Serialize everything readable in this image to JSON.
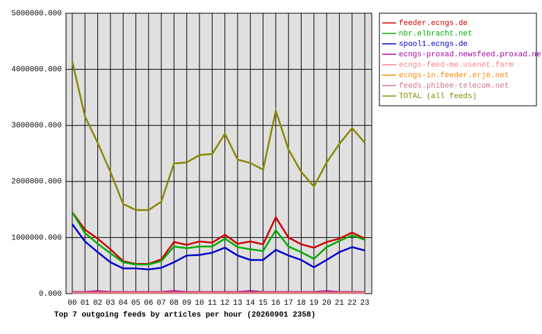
{
  "chart_data": {
    "type": "line",
    "title": "Top 7 outgoing feeds by articles per hour (20260901 2358)",
    "categories": [
      "00",
      "01",
      "02",
      "03",
      "04",
      "05",
      "06",
      "07",
      "08",
      "09",
      "10",
      "11",
      "12",
      "13",
      "14",
      "15",
      "16",
      "17",
      "18",
      "19",
      "20",
      "21",
      "22",
      "23"
    ],
    "ylim": [
      0,
      5000000
    ],
    "yticks": [
      {
        "value": 0,
        "label": "0.000"
      },
      {
        "value": 1000000,
        "label": "1000000.000"
      },
      {
        "value": 2000000,
        "label": "2000000.000"
      },
      {
        "value": 3000000,
        "label": "3000000.000"
      },
      {
        "value": 4000000,
        "label": "4000000.000"
      },
      {
        "value": 5000000,
        "label": "5000000.000"
      }
    ],
    "grid": true,
    "legend": "right",
    "series": [
      {
        "name": "feeder.ecngs.de",
        "color": "#cc0000",
        "values": [
          1450000,
          1140000,
          980000,
          790000,
          580000,
          530000,
          530000,
          610000,
          920000,
          870000,
          930000,
          910000,
          1050000,
          890000,
          930000,
          880000,
          1360000,
          1000000,
          880000,
          820000,
          920000,
          980000,
          1090000,
          980000
        ]
      },
      {
        "name": "nbr.elbracht.net",
        "color": "#00aa00",
        "values": [
          1450000,
          1080000,
          890000,
          720000,
          560000,
          520000,
          520000,
          580000,
          840000,
          810000,
          840000,
          840000,
          980000,
          830000,
          790000,
          760000,
          1130000,
          840000,
          740000,
          620000,
          830000,
          940000,
          1040000,
          960000
        ]
      },
      {
        "name": "spool1.ecngs.de",
        "color": "#0000cc",
        "values": [
          1240000,
          930000,
          740000,
          560000,
          450000,
          450000,
          430000,
          460000,
          560000,
          680000,
          690000,
          730000,
          820000,
          680000,
          600000,
          600000,
          780000,
          680000,
          600000,
          470000,
          600000,
          740000,
          830000,
          770000
        ]
      },
      {
        "name": "ecngs-proxad.newsfeed.proxad.net",
        "color": "#aa00aa",
        "values": [
          30000,
          30000,
          45000,
          30000,
          30000,
          30000,
          30000,
          30000,
          45000,
          30000,
          30000,
          30000,
          30000,
          30000,
          45000,
          30000,
          30000,
          30000,
          30000,
          30000,
          45000,
          30000,
          30000,
          30000
        ]
      },
      {
        "name": "ecngs-feed-me.usenet.farm",
        "color": "#ff8080",
        "values": [
          20000,
          20000,
          20000,
          20000,
          20000,
          20000,
          20000,
          20000,
          20000,
          20000,
          20000,
          20000,
          20000,
          20000,
          20000,
          20000,
          20000,
          20000,
          20000,
          20000,
          20000,
          20000,
          20000,
          20000
        ]
      },
      {
        "name": "ecngs-in.feeder.erje.net",
        "color": "#ff8800",
        "values": [
          15000,
          15000,
          15000,
          15000,
          15000,
          15000,
          15000,
          15000,
          15000,
          15000,
          15000,
          15000,
          15000,
          15000,
          15000,
          15000,
          15000,
          15000,
          15000,
          15000,
          15000,
          15000,
          15000,
          15000
        ]
      },
      {
        "name": "feeds.phibee-telecom.net",
        "color": "#cc7788",
        "values": [
          10000,
          10000,
          10000,
          10000,
          10000,
          10000,
          10000,
          10000,
          10000,
          10000,
          10000,
          10000,
          10000,
          10000,
          10000,
          10000,
          10000,
          10000,
          10000,
          10000,
          10000,
          10000,
          10000,
          10000
        ]
      },
      {
        "name": "TOTAL (all feeds)",
        "color": "#888800",
        "values": [
          4140000,
          3160000,
          2690000,
          2170000,
          1600000,
          1490000,
          1490000,
          1640000,
          2320000,
          2340000,
          2470000,
          2490000,
          2850000,
          2390000,
          2330000,
          2210000,
          3260000,
          2570000,
          2170000,
          1910000,
          2340000,
          2670000,
          2950000,
          2690000
        ]
      }
    ]
  }
}
